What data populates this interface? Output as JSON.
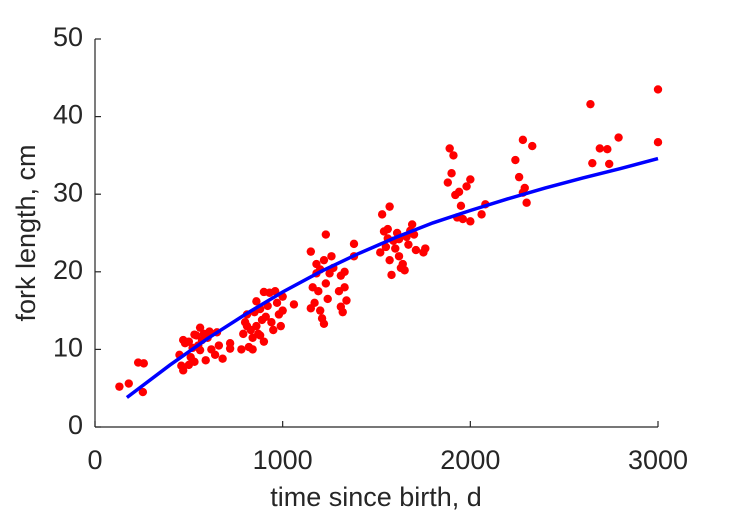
{
  "chart_data": {
    "type": "scatter",
    "xlabel": "time since birth, d",
    "ylabel": "fork length, cm",
    "xlim": [
      0,
      3000
    ],
    "xticks": [
      0,
      1000,
      2000,
      3000
    ],
    "ylim": [
      0,
      50
    ],
    "yticks": [
      0,
      10,
      20,
      30,
      40,
      50
    ],
    "grid": false,
    "series": [
      {
        "type": "scatter",
        "color": "#ff0000",
        "x": [
          130,
          180,
          230,
          260,
          255,
          450,
          460,
          470,
          480,
          500,
          510,
          520,
          530,
          540,
          550,
          560,
          570,
          580,
          590,
          600,
          610,
          620,
          640,
          650,
          660,
          680,
          720,
          720,
          500,
          560,
          470,
          530,
          780,
          790,
          800,
          810,
          820,
          830,
          840,
          850,
          860,
          860,
          870,
          880,
          890,
          900,
          910,
          920,
          930,
          940,
          950,
          960,
          970,
          980,
          990,
          1000,
          1000,
          1060,
          900,
          840,
          810,
          880,
          1150,
          1160,
          1170,
          1180,
          1190,
          1200,
          1200,
          1210,
          1220,
          1220,
          1230,
          1230,
          1240,
          1250,
          1260,
          1270,
          1300,
          1310,
          1310,
          1320,
          1330,
          1330,
          1340,
          1380,
          1380,
          1150,
          1180,
          1520,
          1530,
          1540,
          1550,
          1560,
          1570,
          1570,
          1580,
          1590,
          1600,
          1610,
          1620,
          1630,
          1640,
          1650,
          1660,
          1670,
          1680,
          1690,
          1700,
          1710,
          1750,
          1760,
          1560,
          1620,
          1880,
          1890,
          1900,
          1910,
          1920,
          1930,
          1940,
          1960,
          1980,
          2000,
          2000,
          2060,
          2080,
          1950,
          2240,
          2260,
          2280,
          2280,
          2290,
          2300,
          2330,
          2640,
          2650,
          2690,
          2730,
          2740,
          2790,
          3000,
          3000
        ],
        "values": [
          5.2,
          5.6,
          8.3,
          8.2,
          4.5,
          9.3,
          7.9,
          7.3,
          10.8,
          11.0,
          9.0,
          10.2,
          8.4,
          11.8,
          10.5,
          9.9,
          11.2,
          12.0,
          8.6,
          11.5,
          12.3,
          10.0,
          9.3,
          12.2,
          10.5,
          8.8,
          10.8,
          10.1,
          8.0,
          12.8,
          11.2,
          11.9,
          10.0,
          12.0,
          13.5,
          14.5,
          10.3,
          12.5,
          11.5,
          14.8,
          13.0,
          16.2,
          12.0,
          15.2,
          13.8,
          11.0,
          14.2,
          15.6,
          17.3,
          13.5,
          12.5,
          17.5,
          16.0,
          14.5,
          13.0,
          15.0,
          16.8,
          15.8,
          17.4,
          10.0,
          13.0,
          11.8,
          22.6,
          18.0,
          16.0,
          19.8,
          17.5,
          15.0,
          20.3,
          14.0,
          21.5,
          13.3,
          18.5,
          24.8,
          16.5,
          19.8,
          22.0,
          20.5,
          17.5,
          15.5,
          19.5,
          14.8,
          20.0,
          18.0,
          16.3,
          23.6,
          22.0,
          15.3,
          21.0,
          22.5,
          27.4,
          25.2,
          23.2,
          24.3,
          28.4,
          21.5,
          19.6,
          24.0,
          23.0,
          25.0,
          22.0,
          20.5,
          21.0,
          20.2,
          24.5,
          23.5,
          25.3,
          26.1,
          24.8,
          22.8,
          22.5,
          23.0,
          25.5,
          24.2,
          31.5,
          35.9,
          32.7,
          35.0,
          29.9,
          27.0,
          30.3,
          26.8,
          31.0,
          31.9,
          26.5,
          27.4,
          28.7,
          28.5,
          34.4,
          32.2,
          30.2,
          37.0,
          30.8,
          28.9,
          36.2,
          41.6,
          34.0,
          35.9,
          35.8,
          33.9,
          37.3,
          43.5,
          36.7
        ]
      },
      {
        "type": "line",
        "color": "#0000ff",
        "x": [
          170,
          400,
          600,
          800,
          1000,
          1200,
          1400,
          1600,
          1800,
          2000,
          2200,
          2400,
          2600,
          2800,
          3000
        ],
        "values": [
          3.8,
          8.0,
          11.4,
          14.5,
          17.4,
          20.0,
          22.3,
          24.4,
          26.3,
          27.9,
          29.4,
          30.8,
          32.1,
          33.3,
          34.6
        ]
      }
    ]
  }
}
